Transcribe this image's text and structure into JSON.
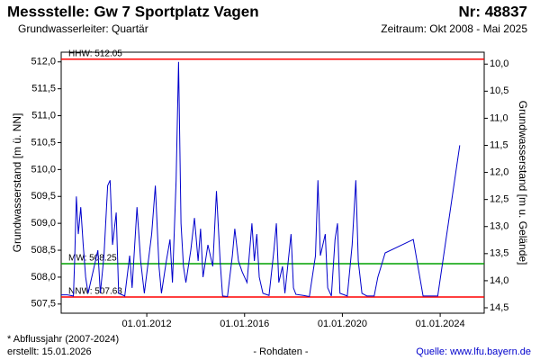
{
  "chart_data": {
    "type": "line",
    "title": "Messstelle: Gw 7 Sportplatz Vagen",
    "number": "Nr: 48837",
    "subtitle": "Grundwasserleiter: Quartär",
    "period": "Zeitraum: Okt 2008 - Mai 2025",
    "ylabel": "Grundwasserstand [m ü. NN]",
    "y2label": "Grundwasserstand [m u. Gelände]",
    "footnote": "* Abflussjahr (2007-2024)",
    "created": "erstellt:  15.01.2026",
    "datatype": "- Rohdaten -",
    "source": "Quelle: www.lfu.bayern.de",
    "xlim": [
      2008.5,
      2025.8
    ],
    "xticks": [
      {
        "value": 2012,
        "label": "01.01.2012"
      },
      {
        "value": 2016,
        "label": "01.01.2016"
      },
      {
        "value": 2020,
        "label": "01.01.2020"
      },
      {
        "value": 2024,
        "label": "01.01.2024"
      }
    ],
    "ylim": [
      507.33,
      512.18
    ],
    "yticks": [
      {
        "value": 507.5,
        "label": "507,5"
      },
      {
        "value": 508,
        "label": "508,0"
      },
      {
        "value": 508.5,
        "label": "508,5"
      },
      {
        "value": 509,
        "label": "509,0"
      },
      {
        "value": 509.5,
        "label": "509,5"
      },
      {
        "value": 510,
        "label": "510,0"
      },
      {
        "value": 510.5,
        "label": "510,5"
      },
      {
        "value": 511,
        "label": "511,0"
      },
      {
        "value": 511.5,
        "label": "511,5"
      },
      {
        "value": 512,
        "label": "512,0"
      }
    ],
    "y2lim": [
      14.6,
      9.78
    ],
    "y2ticks": [
      {
        "value": 10,
        "label": "10,0"
      },
      {
        "value": 10.5,
        "label": "10,5"
      },
      {
        "value": 11,
        "label": "11,0"
      },
      {
        "value": 11.5,
        "label": "11,5"
      },
      {
        "value": 12,
        "label": "12,0"
      },
      {
        "value": 12.5,
        "label": "12,5"
      },
      {
        "value": 13,
        "label": "13,0"
      },
      {
        "value": 13.5,
        "label": "13,5"
      },
      {
        "value": 14,
        "label": "14,0"
      },
      {
        "value": 14.5,
        "label": "14,5"
      }
    ],
    "reference_lines": [
      {
        "label": "HHW: 512.05",
        "value": 512.05,
        "color": "#ff0000"
      },
      {
        "label": "MW: 508.25",
        "value": 508.25,
        "color": "#00a000"
      },
      {
        "label": "NNW: 507.63",
        "value": 507.63,
        "color": "#ff0000"
      }
    ],
    "series": [
      {
        "color": "#0000cc",
        "x": [
          2008.5,
          2008.75,
          2009.0,
          2009.05,
          2009.12,
          2009.2,
          2009.3,
          2009.4,
          2009.5,
          2009.6,
          2009.8,
          2010.0,
          2010.1,
          2010.25,
          2010.4,
          2010.5,
          2010.6,
          2010.75,
          2010.85,
          2011.1,
          2011.3,
          2011.4,
          2011.6,
          2011.75,
          2011.9,
          2012.2,
          2012.35,
          2012.5,
          2012.6,
          2012.8,
          2012.95,
          2013.05,
          2013.2,
          2013.3,
          2013.4,
          2013.5,
          2013.6,
          2013.8,
          2013.95,
          2014.1,
          2014.2,
          2014.3,
          2014.5,
          2014.7,
          2014.85,
          2015.0,
          2015.1,
          2015.3,
          2015.5,
          2015.6,
          2015.75,
          2015.9,
          2016.1,
          2016.3,
          2016.4,
          2016.5,
          2016.6,
          2016.75,
          2017.0,
          2017.2,
          2017.3,
          2017.4,
          2017.55,
          2017.65,
          2017.9,
          2018.0,
          2018.1,
          2018.4,
          2018.65,
          2018.9,
          2019.0,
          2019.1,
          2019.3,
          2019.4,
          2019.55,
          2019.7,
          2019.8,
          2019.9,
          2020.2,
          2020.4,
          2020.55,
          2020.65,
          2020.8,
          2021.0,
          2021.3,
          2021.45,
          2021.75,
          2022.9,
          2023.3,
          2023.9,
          2024.8
        ],
        "values": [
          507.67,
          507.67,
          507.65,
          508.3,
          509.5,
          508.8,
          509.3,
          508.6,
          508.0,
          507.7,
          508.1,
          508.5,
          507.7,
          508.4,
          509.7,
          509.8,
          508.6,
          509.2,
          507.7,
          507.65,
          508.4,
          507.8,
          509.3,
          508.3,
          507.7,
          508.8,
          509.7,
          508.2,
          507.7,
          508.3,
          508.7,
          507.9,
          509.8,
          512.0,
          509.0,
          508.2,
          507.9,
          508.5,
          509.1,
          508.3,
          508.9,
          508.0,
          508.6,
          508.2,
          509.6,
          508.3,
          507.65,
          507.64,
          508.4,
          508.9,
          508.3,
          508.1,
          507.9,
          509.0,
          508.3,
          508.8,
          508.0,
          507.7,
          507.66,
          508.5,
          509.0,
          507.9,
          508.2,
          507.7,
          508.8,
          507.8,
          507.68,
          507.66,
          507.64,
          508.4,
          509.8,
          508.4,
          508.8,
          507.8,
          507.65,
          508.7,
          509.0,
          507.7,
          507.65,
          508.6,
          509.8,
          508.3,
          507.7,
          507.65,
          507.65,
          508.0,
          508.45,
          508.7,
          507.65,
          507.65,
          510.45
        ]
      }
    ]
  }
}
